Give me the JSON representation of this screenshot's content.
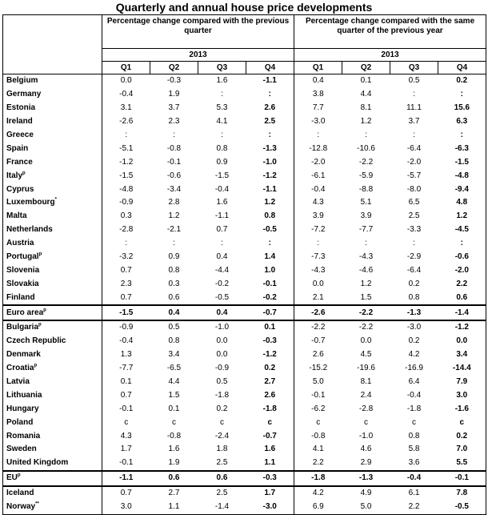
{
  "title": "Quarterly and annual house price developments",
  "headers": {
    "group1": "Percentage change compared with the previous quarter",
    "group2": "Percentage change compared with the same quarter of the previous year",
    "year": "2013",
    "quarters": [
      "Q1",
      "Q2",
      "Q3",
      "Q4"
    ]
  },
  "rows": [
    {
      "country": "Belgium",
      "sup": "",
      "prev": [
        "0.0",
        "-0.3",
        "1.6",
        "-1.1"
      ],
      "yoy": [
        "0.4",
        "0.1",
        "0.5",
        "0.2"
      ]
    },
    {
      "country": "Germany",
      "sup": "",
      "prev": [
        "-0.4",
        "1.9",
        ":",
        ":"
      ],
      "yoy": [
        "3.8",
        "4.4",
        ":",
        ":"
      ]
    },
    {
      "country": "Estonia",
      "sup": "",
      "prev": [
        "3.1",
        "3.7",
        "5.3",
        "2.6"
      ],
      "yoy": [
        "7.7",
        "8.1",
        "11.1",
        "15.6"
      ]
    },
    {
      "country": "Ireland",
      "sup": "",
      "prev": [
        "-2.6",
        "2.3",
        "4.1",
        "2.5"
      ],
      "yoy": [
        "-3.0",
        "1.2",
        "3.7",
        "6.3"
      ]
    },
    {
      "country": "Greece",
      "sup": "",
      "prev": [
        ":",
        ":",
        ":",
        ":"
      ],
      "yoy": [
        ":",
        ":",
        ":",
        ":"
      ]
    },
    {
      "country": "Spain",
      "sup": "",
      "prev": [
        "-5.1",
        "-0.8",
        "0.8",
        "-1.3"
      ],
      "yoy": [
        "-12.8",
        "-10.6",
        "-6.4",
        "-6.3"
      ]
    },
    {
      "country": "France",
      "sup": "",
      "prev": [
        "-1.2",
        "-0.1",
        "0.9",
        "-1.0"
      ],
      "yoy": [
        "-2.0",
        "-2.2",
        "-2.0",
        "-1.5"
      ]
    },
    {
      "country": "Italy",
      "sup": "p",
      "prev": [
        "-1.5",
        "-0.6",
        "-1.5",
        "-1.2"
      ],
      "yoy": [
        "-6.1",
        "-5.9",
        "-5.7",
        "-4.8"
      ]
    },
    {
      "country": "Cyprus",
      "sup": "",
      "prev": [
        "-4.8",
        "-3.4",
        "-0.4",
        "-1.1"
      ],
      "yoy": [
        "-0.4",
        "-8.8",
        "-8.0",
        "-9.4"
      ]
    },
    {
      "country": "Luxembourg",
      "sup": "*",
      "prev": [
        "-0.9",
        "2.8",
        "1.6",
        "1.2"
      ],
      "yoy": [
        "4.3",
        "5.1",
        "6.5",
        "4.8"
      ]
    },
    {
      "country": "Malta",
      "sup": "",
      "prev": [
        "0.3",
        "1.2",
        "-1.1",
        "0.8"
      ],
      "yoy": [
        "3.9",
        "3.9",
        "2.5",
        "1.2"
      ]
    },
    {
      "country": "Netherlands",
      "sup": "",
      "prev": [
        "-2.8",
        "-2.1",
        "0.7",
        "-0.5"
      ],
      "yoy": [
        "-7.2",
        "-7.7",
        "-3.3",
        "-4.5"
      ]
    },
    {
      "country": "Austria",
      "sup": "",
      "prev": [
        ":",
        ":",
        ":",
        ":"
      ],
      "yoy": [
        ":",
        ":",
        ":",
        ":"
      ]
    },
    {
      "country": "Portugal",
      "sup": "p",
      "prev": [
        "-3.2",
        "0.9",
        "0.4",
        "1.4"
      ],
      "yoy": [
        "-7.3",
        "-4.3",
        "-2.9",
        "-0.6"
      ]
    },
    {
      "country": "Slovenia",
      "sup": "",
      "prev": [
        "0.7",
        "0.8",
        "-4.4",
        "1.0"
      ],
      "yoy": [
        "-4.3",
        "-4.6",
        "-6.4",
        "-2.0"
      ]
    },
    {
      "country": "Slovakia",
      "sup": "",
      "prev": [
        "2.3",
        "0.3",
        "-0.2",
        "-0.1"
      ],
      "yoy": [
        "0.0",
        "1.2",
        "0.2",
        "2.2"
      ]
    },
    {
      "country": "Finland",
      "sup": "",
      "prev": [
        "0.7",
        "0.6",
        "-0.5",
        "-0.2"
      ],
      "yoy": [
        "2.1",
        "1.5",
        "0.8",
        "0.6"
      ]
    },
    {
      "country": "Euro area",
      "sup": "p",
      "bold": true,
      "prev": [
        "-1.5",
        "0.4",
        "0.4",
        "-0.7"
      ],
      "yoy": [
        "-2.6",
        "-2.2",
        "-1.3",
        "-1.4"
      ]
    },
    {
      "country": "Bulgaria",
      "sup": "p",
      "prev": [
        "-0.9",
        "0.5",
        "-1.0",
        "0.1"
      ],
      "yoy": [
        "-2.2",
        "-2.2",
        "-3.0",
        "-1.2"
      ]
    },
    {
      "country": "Czech Republic",
      "sup": "",
      "prev": [
        "-0.4",
        "0.8",
        "0.0",
        "-0.3"
      ],
      "yoy": [
        "-0.7",
        "0.0",
        "0.2",
        "0.0"
      ]
    },
    {
      "country": "Denmark",
      "sup": "",
      "prev": [
        "1.3",
        "3.4",
        "0.0",
        "-1.2"
      ],
      "yoy": [
        "2.6",
        "4.5",
        "4.2",
        "3.4"
      ]
    },
    {
      "country": "Croatia",
      "sup": "p",
      "prev": [
        "-7.7",
        "-6.5",
        "-0.9",
        "0.2"
      ],
      "yoy": [
        "-15.2",
        "-19.6",
        "-16.9",
        "-14.4"
      ]
    },
    {
      "country": "Latvia",
      "sup": "",
      "prev": [
        "0.1",
        "4.4",
        "0.5",
        "2.7"
      ],
      "yoy": [
        "5.0",
        "8.1",
        "6.4",
        "7.9"
      ]
    },
    {
      "country": "Lithuania",
      "sup": "",
      "prev": [
        "0.7",
        "1.5",
        "-1.8",
        "2.6"
      ],
      "yoy": [
        "-0.1",
        "2.4",
        "-0.4",
        "3.0"
      ]
    },
    {
      "country": "Hungary",
      "sup": "",
      "prev": [
        "-0.1",
        "0.1",
        "0.2",
        "-1.8"
      ],
      "yoy": [
        "-6.2",
        "-2.8",
        "-1.8",
        "-1.6"
      ]
    },
    {
      "country": "Poland",
      "sup": "",
      "prev": [
        "c",
        "c",
        "c",
        "c"
      ],
      "yoy": [
        "c",
        "c",
        "c",
        "c"
      ]
    },
    {
      "country": "Romania",
      "sup": "",
      "prev": [
        "4.3",
        "-0.8",
        "-2.4",
        "-0.7"
      ],
      "yoy": [
        "-0.8",
        "-1.0",
        "0.8",
        "0.2"
      ]
    },
    {
      "country": "Sweden",
      "sup": "",
      "prev": [
        "1.7",
        "1.6",
        "1.8",
        "1.6"
      ],
      "yoy": [
        "4.1",
        "4.6",
        "5.8",
        "7.0"
      ]
    },
    {
      "country": "United Kingdom",
      "sup": "",
      "prev": [
        "-0.1",
        "1.9",
        "2.5",
        "1.1"
      ],
      "yoy": [
        "2.2",
        "2.9",
        "3.6",
        "5.5"
      ]
    },
    {
      "country": "EU",
      "sup": "p",
      "bold": true,
      "prev": [
        "-1.1",
        "0.6",
        "0.6",
        "-0.3"
      ],
      "yoy": [
        "-1.8",
        "-1.3",
        "-0.4",
        "-0.1"
      ]
    },
    {
      "country": "Iceland",
      "sup": "",
      "prev": [
        "0.7",
        "2.7",
        "2.5",
        "1.7"
      ],
      "yoy": [
        "4.2",
        "4.9",
        "6.1",
        "7.8"
      ]
    },
    {
      "country": "Norway",
      "sup": "**",
      "prev": [
        "3.0",
        "1.1",
        "-1.4",
        "-3.0"
      ],
      "yoy": [
        "6.9",
        "5.0",
        "2.2",
        "-0.5"
      ]
    }
  ]
}
